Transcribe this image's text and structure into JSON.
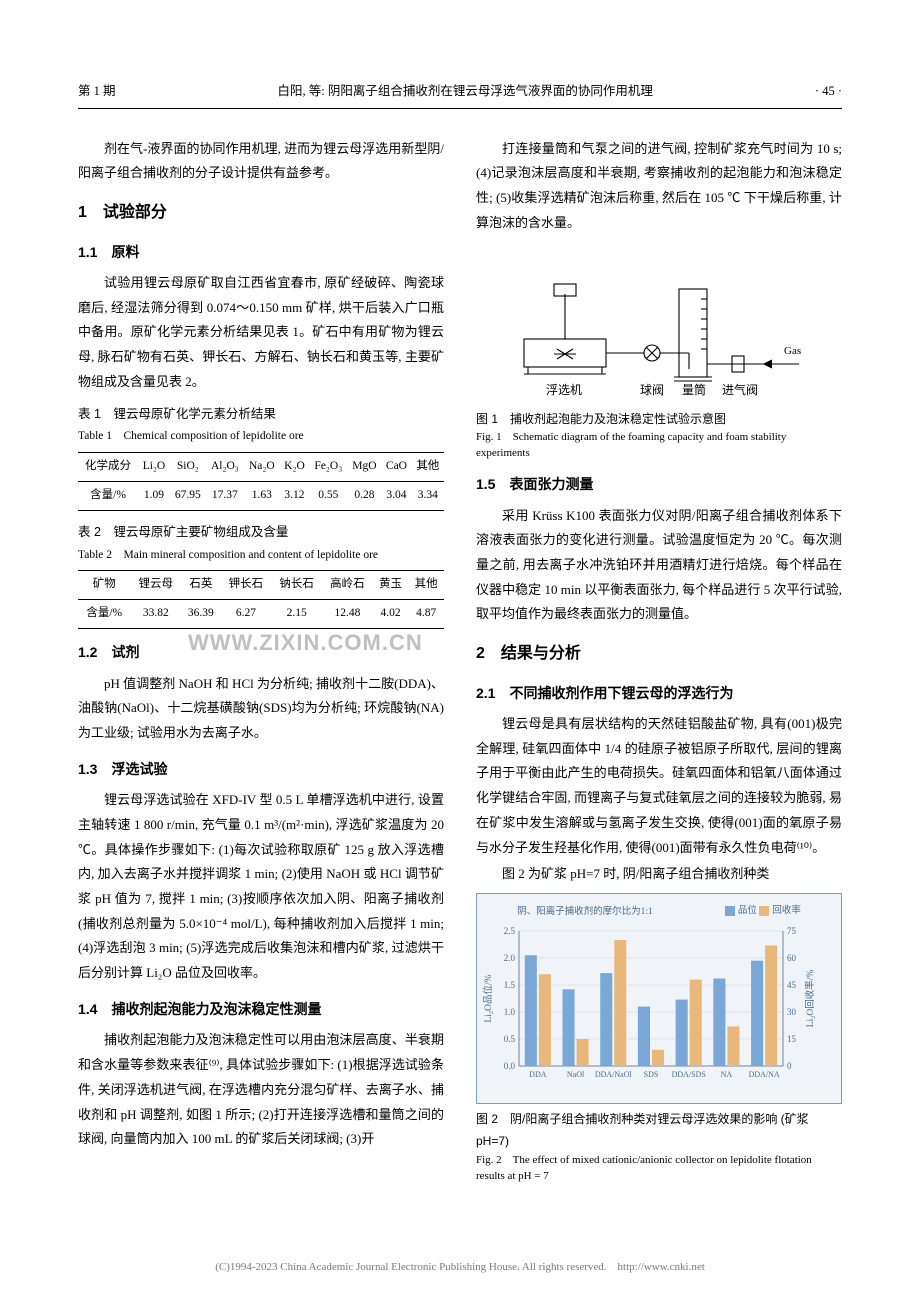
{
  "header": {
    "issue": "第 1 期",
    "title": "白阳, 等: 阴阳离子组合捕收剂在锂云母浮选气液界面的协同作用机理",
    "page": "· 45 ·"
  },
  "col1": {
    "intro": "剂在气-液界面的协同作用机理, 进而为锂云母浮选用新型阴/阳离子组合捕收剂的分子设计提供有益参考。",
    "sec1": "1　试验部分",
    "sub11": "1.1　原料",
    "p11": "试验用锂云母原矿取自江西省宜春市, 原矿经破碎、陶瓷球磨后, 经湿法筛分得到 0.074～0.150 mm 矿样, 烘干后装入广口瓶中备用。原矿化学元素分析结果见表 1。矿石中有用矿物为锂云母, 脉石矿物有石英、钾长石、方解石、钠长石和黄玉等, 主要矿物组成及含量见表 2。",
    "tbl1_cn": "表 1　锂云母原矿化学元素分析结果",
    "tbl1_en": "Table 1　Chemical composition of lepidolite ore",
    "tbl1": {
      "head": [
        "化学成分",
        "Li₂O",
        "SiO₂",
        "Al₂O₃",
        "Na₂O",
        "K₂O",
        "Fe₂O₃",
        "MgO",
        "CaO",
        "其他"
      ],
      "row": [
        "含量/%",
        "1.09",
        "67.95",
        "17.37",
        "1.63",
        "3.12",
        "0.55",
        "0.28",
        "3.04",
        "3.34"
      ]
    },
    "tbl2_cn": "表 2　锂云母原矿主要矿物组成及含量",
    "tbl2_en": "Table 2　Main mineral composition and content of lepidolite ore",
    "tbl2": {
      "head": [
        "矿物",
        "锂云母",
        "石英",
        "钾长石",
        "钠长石",
        "高岭石",
        "黄玉",
        "其他"
      ],
      "row": [
        "含量/%",
        "33.82",
        "36.39",
        "6.27",
        "2.15",
        "12.48",
        "4.02",
        "4.87"
      ]
    },
    "sub12": "1.2　试剂",
    "p12": "pH 值调整剂 NaOH 和 HCl 为分析纯; 捕收剂十二胺(DDA)、油酸钠(NaOl)、十二烷基磺酸钠(SDS)均为分析纯; 环烷酸钠(NA)为工业级; 试验用水为去离子水。",
    "sub13": "1.3　浮选试验",
    "p13": "锂云母浮选试验在 XFD-IV 型 0.5 L 单槽浮选机中进行, 设置主轴转速 1 800 r/min, 充气量 0.1 m³/(m²·min), 浮选矿浆温度为 20 ℃。具体操作步骤如下: (1)每次试验称取原矿 125 g 放入浮选槽内, 加入去离子水并搅拌调浆 1 min; (2)使用 NaOH 或 HCl 调节矿浆 pH 值为 7, 搅拌 1 min; (3)按顺序依次加入阴、阳离子捕收剂(捕收剂总剂量为 5.0×10⁻⁴ mol/L), 每种捕收剂加入后搅拌 1 min; (4)浮选刮泡 3 min; (5)浮选完成后收集泡沫和槽内矿浆, 过滤烘干后分别计算 Li₂O 品位及回收率。",
    "sub14": "1.4　捕收剂起泡能力及泡沫稳定性测量",
    "p14": "捕收剂起泡能力及泡沫稳定性可以用由泡沫层高度、半衰期和含水量等参数来表征⁽⁹⁾, 具体试验步骤如下: (1)根据浮选试验条件, 关闭浮选机进气阀, 在浮选槽内充分混匀矿样、去离子水、捕收剂和 pH 调整剂, 如图 1 所示; (2)打开连接浮选槽和量筒之间的球阀, 向量筒内加入 100 mL 的矿浆后关闭球阀; (3)开"
  },
  "col2": {
    "p_top": "打连接量筒和气泵之间的进气阀, 控制矿浆充气时间为 10 s; (4)记录泡沫层高度和半衰期, 考察捕收剂的起泡能力和泡沫稳定性; (5)收集浮选精矿泡沫后称重, 然后在 105 ℃ 下干燥后称重, 计算泡沫的含水量。",
    "fig1_labels": {
      "gas": "Gas",
      "machine": "浮选机",
      "valve": "球阀",
      "cylinder": "量筒",
      "intake": "进气阀"
    },
    "fig1_cn": "图 1　捕收剂起泡能力及泡沫稳定性试验示意图",
    "fig1_en": "Fig. 1　Schematic diagram of the foaming capacity and foam stability experiments",
    "sub15": "1.5　表面张力测量",
    "p15": "采用 Krüss K100 表面张力仪对阴/阳离子组合捕收剂体系下溶液表面张力的变化进行测量。试验温度恒定为 20 ℃。每次测量之前, 用去离子水冲洗铂环并用酒精灯进行焙烧。每个样品在仪器中稳定 10 min 以平衡表面张力, 每个样品进行 5 次平行试验, 取平均值作为最终表面张力的测量值。",
    "sec2": "2　结果与分析",
    "sub21": "2.1　不同捕收剂作用下锂云母的浮选行为",
    "p21": "锂云母是具有层状结构的天然硅铝酸盐矿物, 具有(001)极完全解理, 硅氧四面体中 1/4 的硅原子被铝原子所取代, 层间的锂离子用于平衡由此产生的电荷损失。硅氧四面体和铝氧八面体通过化学键结合牢固, 而锂离子与复式硅氧层之间的连接较为脆弱, 易在矿浆中发生溶解或与氢离子发生交换, 使得(001)面的氧原子易与水分子发生羟基化作用, 使得(001)面带有永久性负电荷⁽¹⁰⁾。",
    "p22": "图 2 为矿浆 pH=7 时, 阴/阳离子组合捕收剂种类",
    "chart": {
      "legend_title": "阴、阳离子捕收剂的摩尔比为1:1",
      "legend_items": [
        "品位",
        "回收率"
      ],
      "y_left_label": "Li₂O品位/%",
      "y_right_label": "Li₂O回收率/%",
      "left_axis": {
        "min": 0.0,
        "max": 2.5,
        "ticks": [
          0.0,
          0.5,
          1.0,
          1.5,
          2.0,
          2.5
        ]
      },
      "right_axis": {
        "min": 0,
        "max": 75,
        "ticks": [
          0,
          15,
          30,
          45,
          60,
          75
        ]
      },
      "categories": [
        "DDA",
        "NaOl",
        "DDA/NaOl",
        "SDS",
        "DDA/SDS",
        "NA",
        "DDA/NA"
      ],
      "grade": [
        2.05,
        1.42,
        1.72,
        1.1,
        1.23,
        1.62,
        1.95
      ],
      "recovery": [
        51,
        15,
        70,
        9,
        48,
        22,
        67
      ],
      "colors": {
        "grade": "#7aa8d6",
        "recovery": "#e8b87a",
        "grid": "#c8d4e2",
        "border": "#7a9ec5",
        "bg": "#f0f4f9",
        "text": "#4a6a8a"
      }
    },
    "fig2_cn": "图 2　阴/阳离子组合捕收剂种类对锂云母浮选效果的影响 (矿浆 pH=7)",
    "fig2_en": "Fig. 2　The effect of mixed cationic/anionic collector on lepidolite flotation results at pH = 7"
  },
  "watermark": "WWW.ZIXIN.COM.CN",
  "footer": "(C)1994-2023 China Academic Journal Electronic Publishing House. All rights reserved.　http://www.cnki.net"
}
